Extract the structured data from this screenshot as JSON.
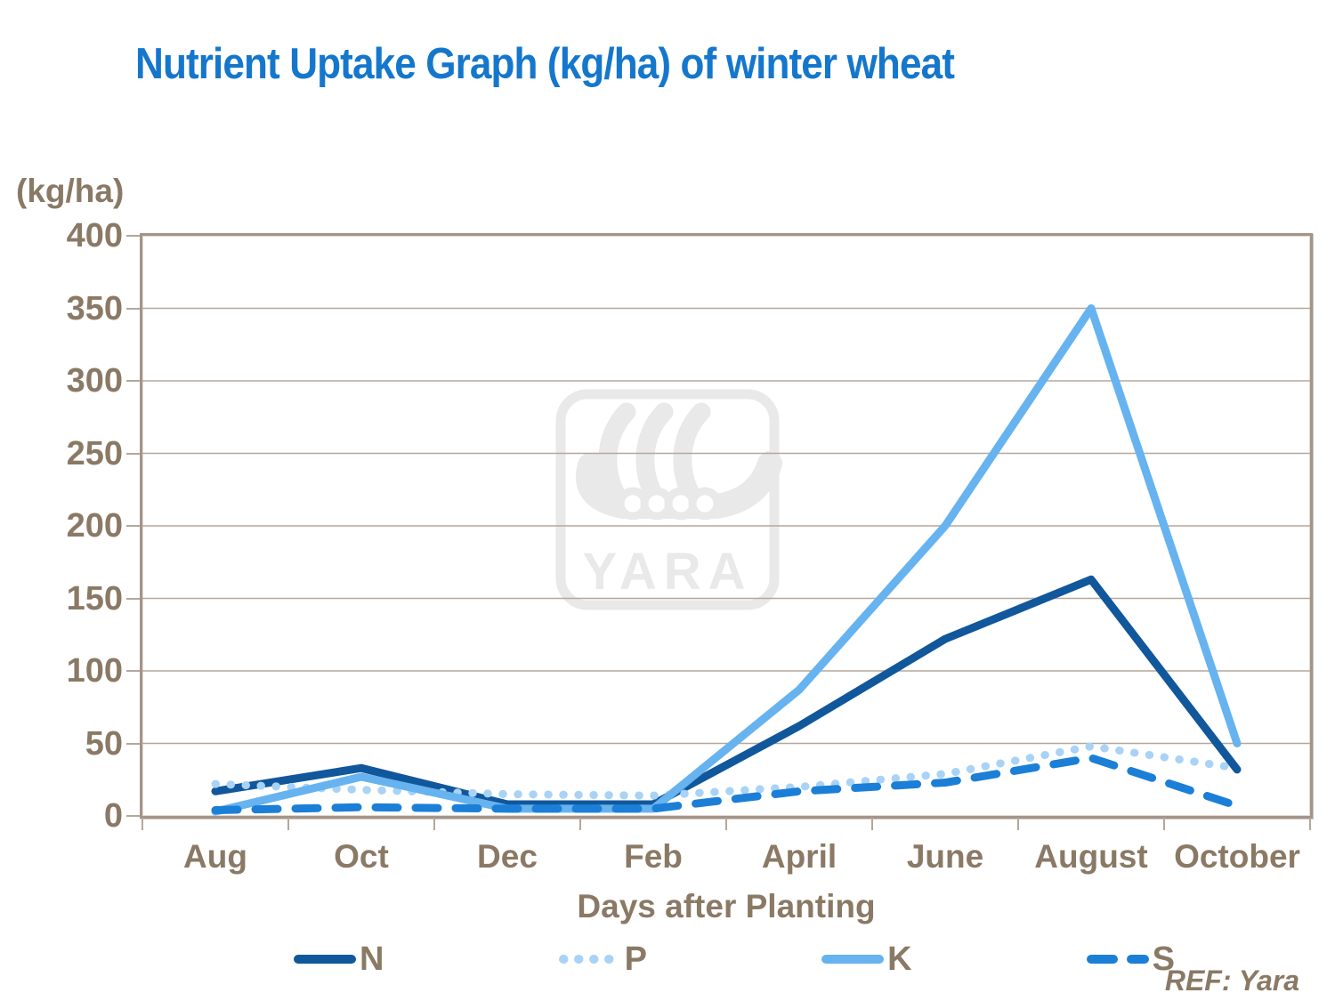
{
  "header": {
    "title": "Nutrient Uptake Graph (kg/ha) of winter wheat"
  },
  "axes": {
    "y_unit_label": "(kg/ha)",
    "x_title": "Days after Planting"
  },
  "watermark": {
    "text": "YARA"
  },
  "footnote": {
    "ref": "REF: Yara"
  },
  "colors": {
    "title": "#1577cc",
    "axis_text": "#8a7965",
    "grid": "#b5a79a",
    "border": "#a3948a",
    "watermark": "#e9e9e9",
    "n": "#11579b",
    "p": "#a8d3f6",
    "k": "#66b3f0",
    "s": "#1b7fd8"
  },
  "chart_data": {
    "type": "line",
    "title": "Nutrient Uptake Graph (kg/ha) of winter wheat",
    "xlabel": "Days after Planting",
    "ylabel": "(kg/ha)",
    "categories": [
      "Aug",
      "Oct",
      "Dec",
      "Feb",
      "April",
      "June",
      "August",
      "October"
    ],
    "series": [
      {
        "name": "N",
        "style": "solid",
        "color_key": "n",
        "values": [
          17,
          33,
          8,
          8,
          62,
          122,
          163,
          32
        ]
      },
      {
        "name": "P",
        "style": "dotted",
        "color_key": "p",
        "values": [
          22,
          18,
          15,
          14,
          20,
          29,
          48,
          33
        ]
      },
      {
        "name": "K",
        "style": "solid",
        "color_key": "k",
        "values": [
          3,
          27,
          5,
          5,
          87,
          200,
          350,
          50
        ]
      },
      {
        "name": "S",
        "style": "dashed",
        "color_key": "s",
        "values": [
          4,
          6,
          5,
          5,
          17,
          23,
          40,
          7
        ]
      }
    ],
    "ylim": [
      0,
      400
    ],
    "ytick_step": 50,
    "grid": "horizontal",
    "legend_position": "bottom"
  }
}
